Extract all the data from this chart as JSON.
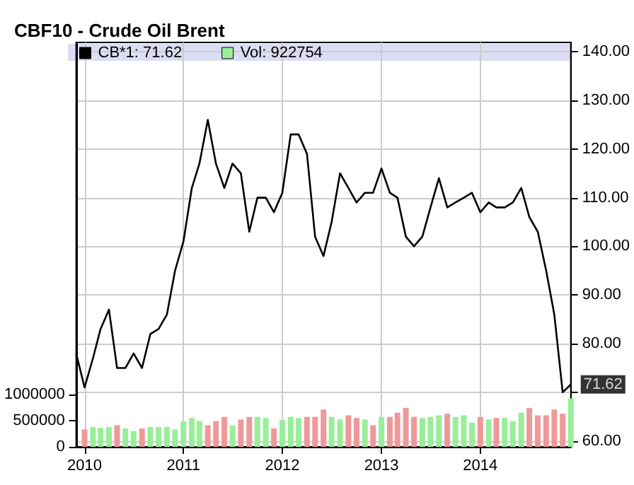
{
  "chart_data": {
    "type": "line",
    "title": "CBF10 - Crude Oil Brent",
    "series": [
      {
        "name": "CB*1: 71.62",
        "color": "#000000",
        "x": [
          "2009-12",
          "2010-01",
          "2010-02",
          "2010-03",
          "2010-04",
          "2010-05",
          "2010-06",
          "2010-07",
          "2010-08",
          "2010-09",
          "2010-10",
          "2010-11",
          "2010-12",
          "2011-01",
          "2011-02",
          "2011-03",
          "2011-04",
          "2011-05",
          "2011-06",
          "2011-07",
          "2011-08",
          "2011-09",
          "2011-10",
          "2011-11",
          "2011-12",
          "2012-01",
          "2012-02",
          "2012-03",
          "2012-04",
          "2012-05",
          "2012-06",
          "2012-07",
          "2012-08",
          "2012-09",
          "2012-10",
          "2012-11",
          "2012-12",
          "2013-01",
          "2013-02",
          "2013-03",
          "2013-04",
          "2013-05",
          "2013-06",
          "2013-07",
          "2013-08",
          "2013-09",
          "2013-10",
          "2013-11",
          "2013-12",
          "2014-01",
          "2014-02",
          "2014-03",
          "2014-04",
          "2014-05",
          "2014-06",
          "2014-07",
          "2014-08",
          "2014-09",
          "2014-10",
          "2014-11",
          "2014-12"
        ],
        "values": [
          78,
          71,
          77,
          83,
          87,
          75,
          75,
          78,
          75,
          82,
          83,
          86,
          95,
          101,
          112,
          117,
          126,
          117,
          112,
          117,
          115,
          103,
          110,
          110,
          107,
          111,
          123,
          123,
          119,
          102,
          98,
          105,
          115,
          112,
          109,
          111,
          111,
          116,
          111,
          110,
          102,
          100,
          102,
          108,
          114,
          108,
          109,
          110,
          111,
          107,
          109,
          108,
          108,
          109,
          112,
          106,
          103,
          95,
          86,
          70,
          71.62
        ]
      },
      {
        "name": "Vol: 922754",
        "type": "bar",
        "axis": "y2",
        "color": "#99ee99",
        "x": [
          "2010-01",
          "2010-02",
          "2010-03",
          "2010-04",
          "2010-05",
          "2010-06",
          "2010-07",
          "2010-08",
          "2010-09",
          "2010-10",
          "2010-11",
          "2010-12",
          "2011-01",
          "2011-02",
          "2011-03",
          "2011-04",
          "2011-05",
          "2011-06",
          "2011-07",
          "2011-08",
          "2011-09",
          "2011-10",
          "2011-11",
          "2011-12",
          "2012-01",
          "2012-02",
          "2012-03",
          "2012-04",
          "2012-05",
          "2012-06",
          "2012-07",
          "2012-08",
          "2012-09",
          "2012-10",
          "2012-11",
          "2012-12",
          "2013-01",
          "2013-02",
          "2013-03",
          "2013-04",
          "2013-05",
          "2013-06",
          "2013-07",
          "2013-08",
          "2013-09",
          "2013-10",
          "2013-11",
          "2013-12",
          "2014-01",
          "2014-02",
          "2014-03",
          "2014-04",
          "2014-05",
          "2014-06",
          "2014-07",
          "2014-08",
          "2014-09",
          "2014-10",
          "2014-11",
          "2014-12"
        ],
        "values": [
          330000,
          380000,
          360000,
          380000,
          410000,
          350000,
          300000,
          350000,
          380000,
          380000,
          380000,
          330000,
          480000,
          550000,
          490000,
          410000,
          490000,
          570000,
          410000,
          520000,
          570000,
          570000,
          550000,
          350000,
          510000,
          570000,
          550000,
          570000,
          570000,
          710000,
          570000,
          520000,
          600000,
          550000,
          520000,
          410000,
          570000,
          570000,
          650000,
          740000,
          570000,
          550000,
          570000,
          600000,
          630000,
          570000,
          600000,
          460000,
          570000,
          520000,
          550000,
          550000,
          490000,
          650000,
          740000,
          600000,
          600000,
          710000,
          630000,
          922754
        ],
        "colors": [
          "#ee9999",
          "#99ee99",
          "#99ee99",
          "#99ee99",
          "#ee9999",
          "#99ee99",
          "#99ee99",
          "#ee9999",
          "#99ee99",
          "#99ee99",
          "#99ee99",
          "#99ee99",
          "#99ee99",
          "#99ee99",
          "#99ee99",
          "#ee9999",
          "#ee9999",
          "#ee9999",
          "#99ee99",
          "#ee9999",
          "#ee9999",
          "#99ee99",
          "#99ee99",
          "#ee9999",
          "#99ee99",
          "#99ee99",
          "#99ee99",
          "#ee9999",
          "#ee9999",
          "#ee9999",
          "#99ee99",
          "#99ee99",
          "#ee9999",
          "#ee9999",
          "#99ee99",
          "#ee9999",
          "#99ee99",
          "#ee9999",
          "#ee9999",
          "#ee9999",
          "#ee9999",
          "#99ee99",
          "#99ee99",
          "#99ee99",
          "#ee9999",
          "#99ee99",
          "#99ee99",
          "#99ee99",
          "#ee9999",
          "#99ee99",
          "#ee9999",
          "#99ee99",
          "#99ee99",
          "#99ee99",
          "#ee9999",
          "#ee9999",
          "#ee9999",
          "#ee9999",
          "#ee9999",
          "#99ee99"
        ]
      }
    ],
    "xlim": [
      "2009-12",
      "2014-12"
    ],
    "xticks": [
      "2010",
      "2011",
      "2012",
      "2013",
      "2014"
    ],
    "ylim": [
      58.8,
      141.9
    ],
    "yticks": [
      {
        "value": 60,
        "label": "60.00"
      },
      {
        "value": 70,
        "label": null
      },
      {
        "value": 80,
        "label": "80.00"
      },
      {
        "value": 90,
        "label": "90.00"
      },
      {
        "value": 100,
        "label": "100.00"
      },
      {
        "value": 110,
        "label": "110.00"
      },
      {
        "value": 120,
        "label": "120.00"
      },
      {
        "value": 130,
        "label": "130.00"
      },
      {
        "value": 140,
        "label": "140.00"
      }
    ],
    "y2lim": [
      0,
      7700000
    ],
    "y2ticks": [
      0,
      500000,
      1000000
    ],
    "annotations": [
      {
        "text": "71.62",
        "x": "2014-12",
        "y": 71.62
      }
    ],
    "grid": true,
    "legend": "top left",
    "marker": "none"
  }
}
